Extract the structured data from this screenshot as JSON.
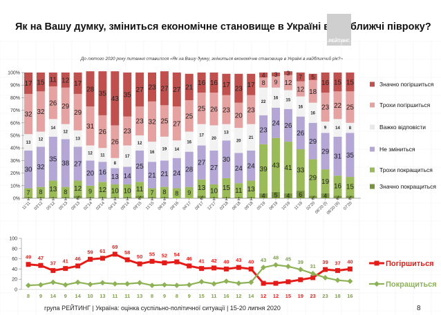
{
  "header": {
    "title": "Як на Вашу думку, зміниться економічне становище в Україні в найближчі півроку?",
    "logo_text": "РЕЙТИНГ",
    "note": "До лютого 2020 року питання ставилося «Як на Вашу думку, зміниться економічне становище в Україні в найближчий рік?»"
  },
  "footer": {
    "text": "група РЕЙТИНГ | Україна: оцінка суспільно-політичної  ситуації  | 15-20 липня  2020",
    "page": "8"
  },
  "chart_data": [
    {
      "type": "bar",
      "stacked": true,
      "grid": true,
      "legend_placement": "right",
      "ylim": [
        0,
        100
      ],
      "yticks": [
        "0%",
        "10%",
        "20%",
        "30%",
        "40%",
        "50%",
        "60%",
        "70%",
        "80%",
        "90%",
        "100%"
      ],
      "categories": [
        "11'11",
        "03'12",
        "05'12",
        "05'13",
        "09'13",
        "02'14",
        "03'14",
        "04'14",
        "09'14",
        "09'15",
        "11'15",
        "06'16",
        "09'16",
        "04'17",
        "09'17",
        "12'17",
        "03'18",
        "06'18",
        "09'18",
        "05'19",
        "08'19",
        "10'19",
        "11'19",
        "02'20",
        "06'20 (I)",
        "06'20 (II)",
        "07'20"
      ],
      "series": [
        {
          "name": "Значно покращиться",
          "color": "#77933c",
          "values": [
            1,
            1,
            1,
            1,
            2,
            1,
            1,
            1,
            1,
            2,
            1,
            1,
            0,
            0,
            2,
            1,
            1,
            1,
            1,
            4,
            5,
            4,
            6,
            2,
            4,
            2,
            2
          ]
        },
        {
          "name": "Трохи покращиться",
          "color": "#9bbb59",
          "values": [
            7,
            8,
            13,
            8,
            12,
            9,
            12,
            10,
            10,
            11,
            7,
            8,
            8,
            9,
            13,
            10,
            15,
            11,
            13,
            39,
            43,
            41,
            33,
            29,
            19,
            16,
            15
          ]
        },
        {
          "name": "Не зміниться",
          "color": "#b4a7d6",
          "values": [
            30,
            32,
            35,
            38,
            27,
            20,
            16,
            13,
            14,
            25,
            21,
            21,
            24,
            28,
            27,
            27,
            30,
            24,
            24,
            23,
            24,
            26,
            26,
            29,
            29,
            31,
            35
          ]
        },
        {
          "name": "Важко відповісти",
          "color": "#f2f2f2",
          "values": [
            13,
            12,
            14,
            12,
            13,
            12,
            11,
            8,
            17,
            12,
            16,
            19,
            14,
            16,
            17,
            20,
            13,
            20,
            21,
            22,
            16,
            15,
            16,
            16,
            9,
            14,
            8
          ]
        },
        {
          "name": "Трохи погіршиться",
          "color": "#e6a1a1",
          "values": [
            32,
            32,
            26,
            29,
            29,
            31,
            26,
            26,
            23,
            23,
            32,
            25,
            27,
            25,
            25,
            26,
            23,
            20,
            23,
            8,
            9,
            12,
            12,
            18,
            23,
            22,
            25
          ]
        },
        {
          "name": "Значно погіршиться",
          "color": "#c0504d",
          "values": [
            17,
            15,
            11,
            12,
            17,
            28,
            35,
            43,
            35,
            27,
            23,
            27,
            27,
            21,
            16,
            16,
            17,
            23,
            17,
            4,
            3,
            3,
            7,
            5,
            16,
            15,
            15
          ]
        }
      ]
    },
    {
      "type": "line",
      "grid": true,
      "legend_placement": "right",
      "ylim": [
        0,
        100
      ],
      "yticks": [
        "0",
        "20",
        "40",
        "60",
        "80",
        "100"
      ],
      "categories": [
        "11'11",
        "03'12",
        "05'12",
        "05'13",
        "09'13",
        "02'14",
        "03'14",
        "04'14",
        "09'14",
        "09'15",
        "11'15",
        "06'16",
        "09'16",
        "04'17",
        "09'17",
        "12'17",
        "03'18",
        "06'18",
        "09'18",
        "05'19",
        "08'19",
        "10'19",
        "11'19",
        "02'20",
        "06'20 (I)",
        "06'20 (II)",
        "07'20"
      ],
      "series": [
        {
          "name": "Погіршиться",
          "color": "#e41b17",
          "marker": "square",
          "values": [
            49,
            47,
            37,
            41,
            46,
            59,
            61,
            69,
            58,
            50,
            55,
            52,
            54,
            46,
            41,
            42,
            40,
            43,
            40,
            12,
            12,
            15,
            19,
            23,
            39,
            37,
            40
          ]
        },
        {
          "name": "Покращиться",
          "color": "#8db255",
          "marker": "diamond",
          "values": [
            8,
            9,
            14,
            9,
            14,
            10,
            13,
            11,
            11,
            13,
            8,
            9,
            8,
            9,
            15,
            11,
            16,
            12,
            14,
            43,
            48,
            45,
            39,
            31,
            23,
            18,
            16
          ]
        }
      ]
    }
  ]
}
